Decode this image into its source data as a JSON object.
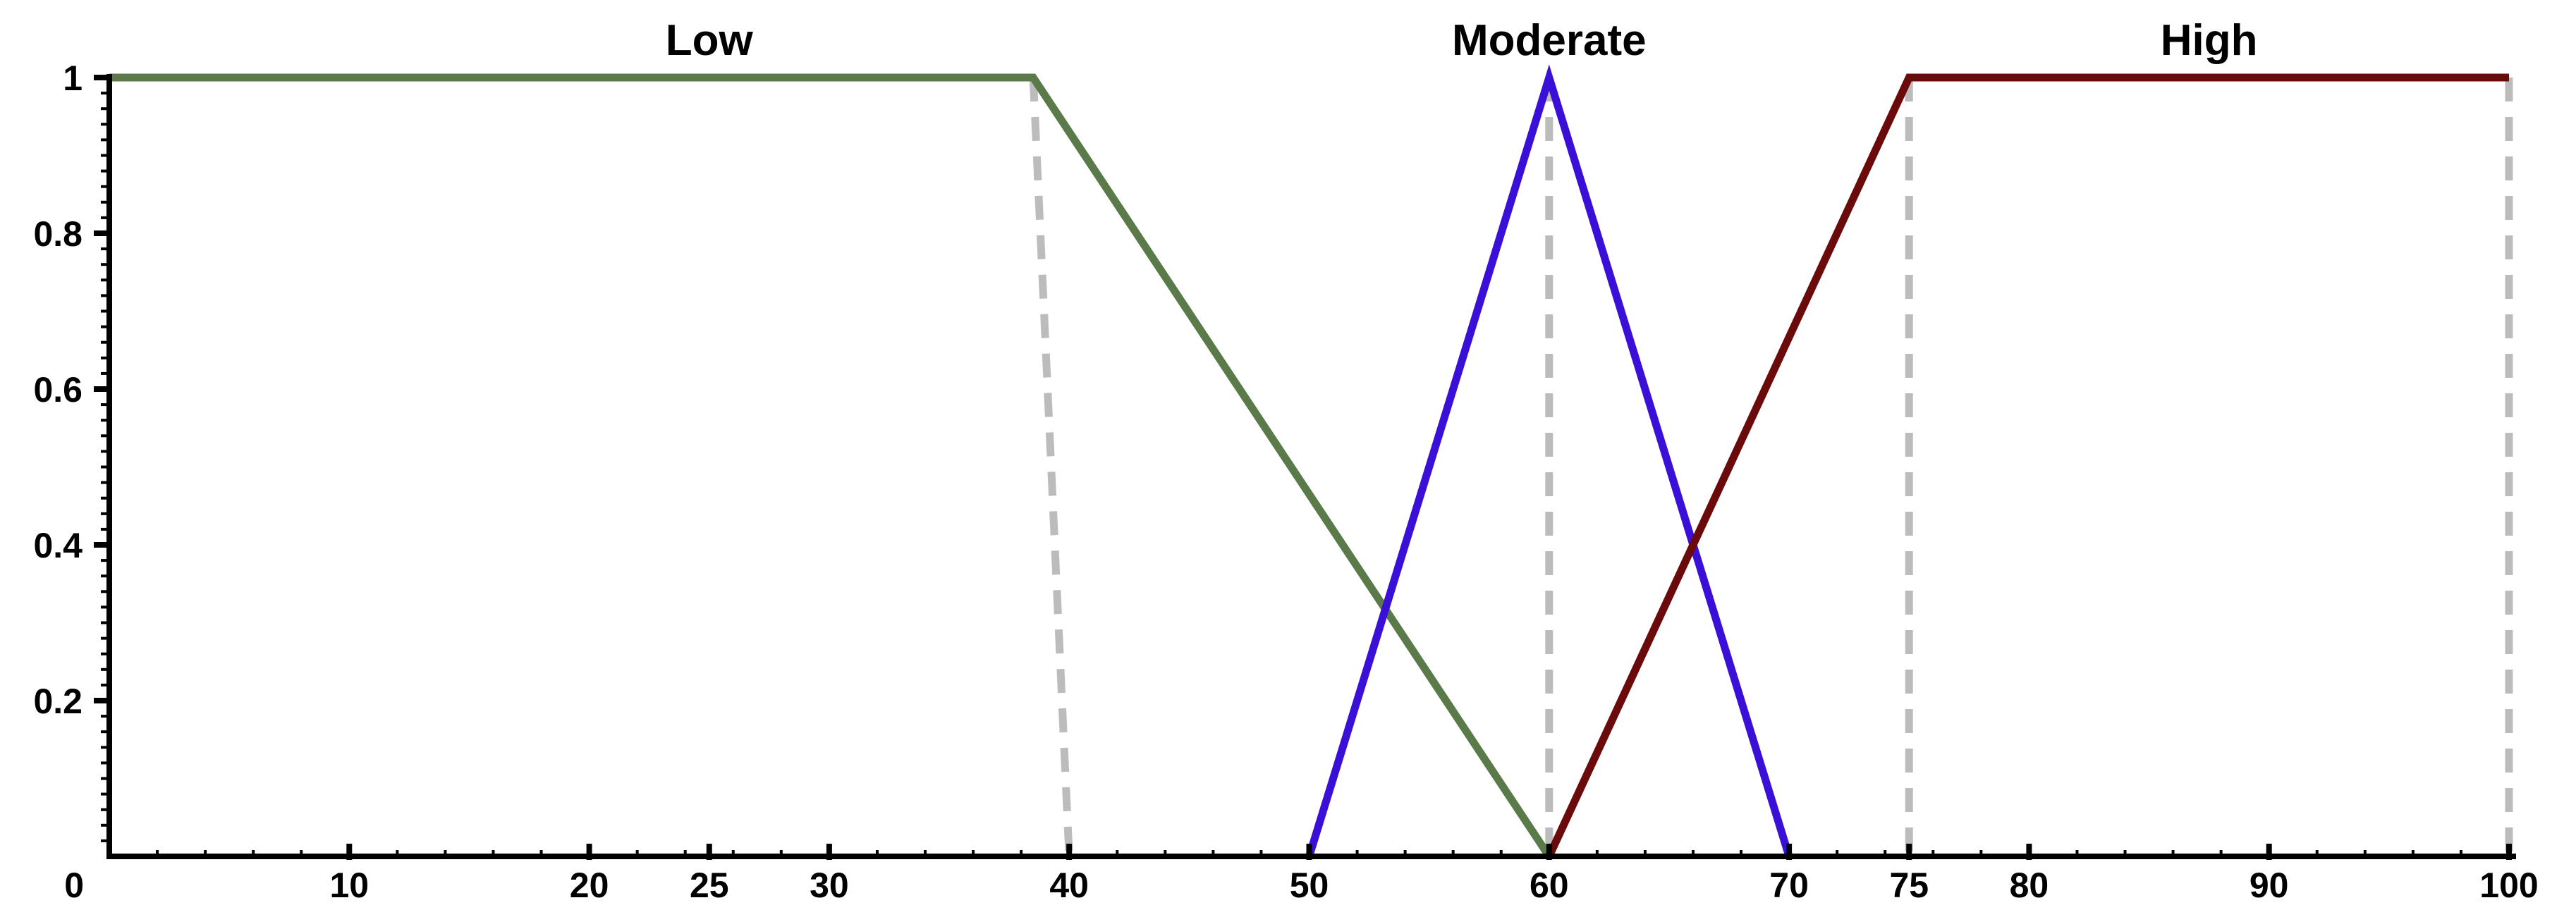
{
  "chart_data": {
    "type": "line",
    "title": "",
    "xlabel": "",
    "ylabel": "",
    "xlim": [
      0,
      100
    ],
    "ylim": [
      0,
      1
    ],
    "x_ticks": [
      {
        "value": 0,
        "label": "0"
      },
      {
        "value": 10,
        "label": "10"
      },
      {
        "value": 20,
        "label": "20"
      },
      {
        "value": 25,
        "label": "25"
      },
      {
        "value": 30,
        "label": "30"
      },
      {
        "value": 40,
        "label": "40"
      },
      {
        "value": 50,
        "label": "50"
      },
      {
        "value": 60,
        "label": "60"
      },
      {
        "value": 70,
        "label": "70"
      },
      {
        "value": 75,
        "label": "75"
      },
      {
        "value": 80,
        "label": "80"
      },
      {
        "value": 90,
        "label": "90"
      },
      {
        "value": 100,
        "label": "100"
      }
    ],
    "y_ticks": [
      {
        "value": 0.2,
        "label": "0.2"
      },
      {
        "value": 0.4,
        "label": "0.4"
      },
      {
        "value": 0.6,
        "label": "0.6"
      },
      {
        "value": 0.8,
        "label": "0.8"
      },
      {
        "value": 1,
        "label": "1"
      }
    ],
    "series": [
      {
        "name": "Low",
        "color": "#5a7a4a",
        "points": [
          [
            0,
            1
          ],
          [
            38.5,
            1
          ],
          [
            60,
            0
          ]
        ]
      },
      {
        "name": "Moderate",
        "color": "#3a10d8",
        "points": [
          [
            50,
            0
          ],
          [
            60,
            1
          ],
          [
            70,
            0
          ]
        ]
      },
      {
        "name": "High",
        "color": "#6b0a0a",
        "points": [
          [
            60,
            0
          ],
          [
            75,
            1
          ],
          [
            100,
            1
          ]
        ]
      }
    ],
    "reference_lines": [
      {
        "from": [
          38.5,
          1
        ],
        "to": [
          40,
          0
        ],
        "color": "#bcbcbc"
      },
      {
        "from": [
          60,
          1
        ],
        "to": [
          60,
          0
        ],
        "color": "#bcbcbc"
      },
      {
        "from": [
          75,
          1
        ],
        "to": [
          75,
          0
        ],
        "color": "#bcbcbc"
      },
      {
        "from": [
          100,
          1
        ],
        "to": [
          100,
          0
        ],
        "color": "#bcbcbc"
      }
    ],
    "grid": false,
    "legend": "none",
    "series_label_placement": "above each set's peak"
  }
}
